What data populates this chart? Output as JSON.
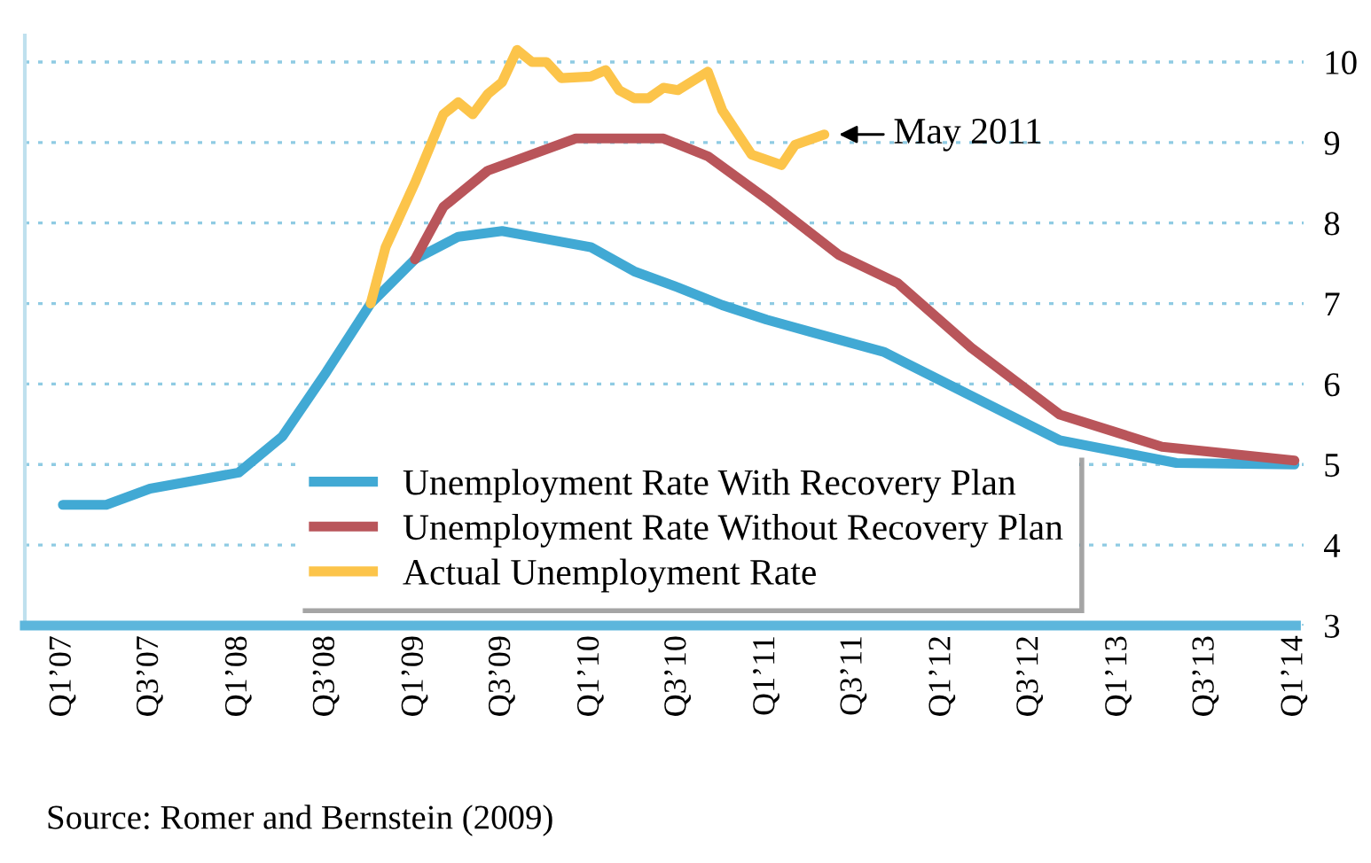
{
  "chart_data": {
    "type": "line",
    "annotations": [
      {
        "text": "May 2011",
        "x": "2011-05",
        "y": 9.1
      },
      "Source: Romer and Bernstein (2009)"
    ],
    "xlim": [
      "2006-10-14",
      "2014-01-20"
    ],
    "ylim": [
      3,
      10.33
    ],
    "xticks": [
      {
        "value": "2007-01",
        "label": "Q1’07"
      },
      {
        "value": "2007-07",
        "label": "Q3’07"
      },
      {
        "value": "2008-01",
        "label": "Q1’08"
      },
      {
        "value": "2008-07",
        "label": "Q3’08"
      },
      {
        "value": "2009-01",
        "label": "Q1’09"
      },
      {
        "value": "2009-07",
        "label": "Q3’09"
      },
      {
        "value": "2010-01",
        "label": "Q1’10"
      },
      {
        "value": "2010-07",
        "label": "Q3’10"
      },
      {
        "value": "2011-01",
        "label": "Q1’11"
      },
      {
        "value": "2011-07",
        "label": "Q3’11"
      },
      {
        "value": "2012-01",
        "label": "Q1’12"
      },
      {
        "value": "2012-07",
        "label": "Q3’12"
      },
      {
        "value": "2013-01",
        "label": "Q1’13"
      },
      {
        "value": "2013-07",
        "label": "Q3’13"
      },
      {
        "value": "2014-01",
        "label": "Q1’14"
      }
    ],
    "yticks": [
      3,
      4,
      5,
      6,
      7,
      8,
      9,
      10
    ],
    "grid": "y",
    "legend": "bottom",
    "marker": "none",
    "line_style": "solid",
    "series": [
      {
        "name": "Unemployment Rate With Recovery Plan",
        "color": "#41a9d4",
        "x": [
          "2007-01",
          "2007-04",
          "2007-07",
          "2007-10",
          "2008-01",
          "2008-04",
          "2008-07",
          "2008-10",
          "2009-01",
          "2009-04",
          "2009-07",
          "2009-10",
          "2010-01",
          "2010-04",
          "2010-07",
          "2010-10",
          "2011-01",
          "2011-04",
          "2011-09",
          "2012-09",
          "2013-05",
          "2014-01"
        ],
        "values": [
          4.5,
          4.5,
          4.7,
          4.8,
          4.9,
          5.35,
          6.15,
          7.0,
          7.55,
          7.83,
          7.9,
          7.8,
          7.7,
          7.4,
          7.2,
          6.98,
          6.8,
          6.65,
          6.4,
          5.3,
          5.02,
          5.0
        ]
      },
      {
        "name": "Unemployment Rate Without Recovery Plan",
        "color": "#b9555a",
        "x": [
          "2009-01",
          "2009-03",
          "2009-06",
          "2009-12",
          "2010-06",
          "2010-09",
          "2011-01",
          "2011-06",
          "2011-10",
          "2012-03",
          "2012-09",
          "2013-04",
          "2014-01"
        ],
        "values": [
          7.55,
          8.2,
          8.65,
          9.05,
          9.05,
          8.83,
          8.3,
          7.6,
          7.25,
          6.45,
          5.62,
          5.22,
          5.05
        ]
      },
      {
        "name": "Actual Unemployment Rate",
        "color": "#fcc44a",
        "x": [
          "2008-10",
          "2008-11",
          "2009-01",
          "2009-03",
          "2009-04",
          "2009-05",
          "2009-06",
          "2009-07",
          "2009-08",
          "2009-09",
          "2009-10",
          "2009-11",
          "2010-01",
          "2010-02",
          "2010-03",
          "2010-04",
          "2010-05",
          "2010-06",
          "2010-07",
          "2010-09",
          "2010-10",
          "2010-12",
          "2011-02",
          "2011-03",
          "2011-05"
        ],
        "values": [
          7.0,
          7.7,
          8.5,
          9.35,
          9.5,
          9.35,
          9.6,
          9.75,
          10.15,
          10.0,
          10.0,
          9.8,
          9.82,
          9.9,
          9.65,
          9.55,
          9.55,
          9.68,
          9.65,
          9.88,
          9.4,
          8.85,
          8.72,
          8.97,
          9.1
        ]
      }
    ]
  }
}
